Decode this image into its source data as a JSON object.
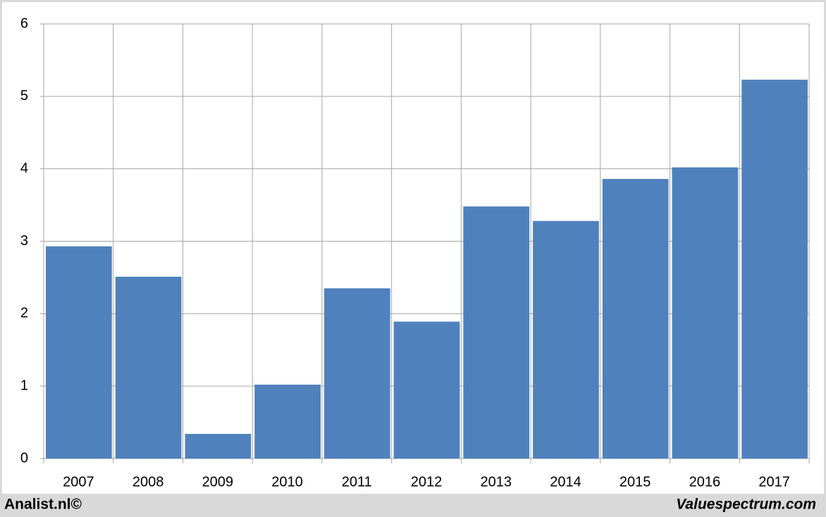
{
  "chart_data": {
    "type": "bar",
    "categories": [
      "2007",
      "2008",
      "2009",
      "2010",
      "2011",
      "2012",
      "2013",
      "2014",
      "2015",
      "2016",
      "2017"
    ],
    "values": [
      2.93,
      2.51,
      0.34,
      1.02,
      2.35,
      1.89,
      3.48,
      3.28,
      3.86,
      4.02,
      5.23
    ],
    "color": "#4f81bd",
    "ylim": [
      0,
      6
    ],
    "yticks": [
      0,
      1,
      2,
      3,
      4,
      5,
      6
    ],
    "grid": true,
    "annotations": [
      "Analist.nl©",
      "Valuespectrum.com"
    ]
  }
}
